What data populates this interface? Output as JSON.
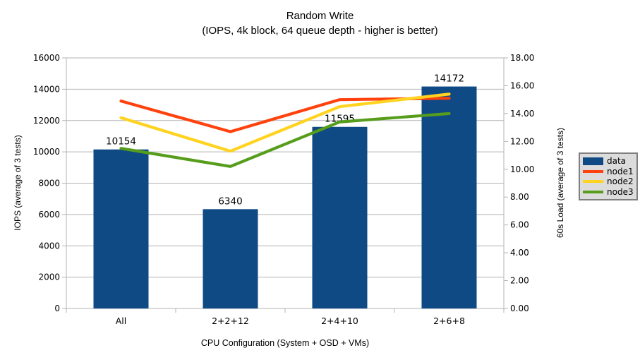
{
  "chart_data": {
    "type": "combo-bar-line",
    "title": "Random Write",
    "subtitle": "(IOPS, 4k block, 64 queue depth - higher is better)",
    "categories": [
      "All",
      "2+2+12",
      "2+4+10",
      "2+6+8"
    ],
    "bar_series": {
      "name": "data",
      "axis": "left",
      "values": [
        10154,
        6340,
        11595,
        14172
      ],
      "data_labels": [
        "10154",
        "6340",
        "11595",
        "14172"
      ],
      "color": "#0f4a85"
    },
    "line_series": [
      {
        "name": "node1",
        "axis": "right",
        "values": [
          14.9,
          12.7,
          15.0,
          15.1
        ],
        "color": "#ff420e"
      },
      {
        "name": "node2",
        "axis": "right",
        "values": [
          13.7,
          11.3,
          14.5,
          15.4
        ],
        "color": "#ffd320"
      },
      {
        "name": "node3",
        "axis": "right",
        "values": [
          11.5,
          10.2,
          13.4,
          14.0
        ],
        "color": "#579d1c"
      }
    ],
    "left_axis": {
      "label": "IOPS (average of 3 tests)",
      "min": 0,
      "max": 16000,
      "step": 2000,
      "tick_labels": [
        "0",
        "2000",
        "4000",
        "6000",
        "8000",
        "10000",
        "12000",
        "14000",
        "16000"
      ]
    },
    "right_axis": {
      "label": "60s Load (average of 3 tests)",
      "min": 0,
      "max": 18,
      "step": 2,
      "tick_labels": [
        "0.00",
        "2.00",
        "4.00",
        "6.00",
        "8.00",
        "10.00",
        "12.00",
        "14.00",
        "16.00",
        "18.00"
      ]
    },
    "x_axis": {
      "label": "CPU Configuration (System + OSD + VMs)"
    },
    "legend": {
      "position": "right",
      "entries": [
        {
          "label": "data",
          "swatch": "box",
          "color": "#0f4a85"
        },
        {
          "label": "node1",
          "swatch": "line",
          "color": "#ff420e"
        },
        {
          "label": "node2",
          "swatch": "line",
          "color": "#ffd320"
        },
        {
          "label": "node3",
          "swatch": "line",
          "color": "#579d1c"
        }
      ]
    },
    "grid": true,
    "layout": {
      "legend_position": "right",
      "grid": "horizontal-only"
    },
    "colors": {
      "grid": "#b3b3b3",
      "axis": "#b3b3b3",
      "background": "#ffffff",
      "legend_bg": "#dcdcdc",
      "legend_border": "#808080",
      "text": "#000000"
    }
  }
}
